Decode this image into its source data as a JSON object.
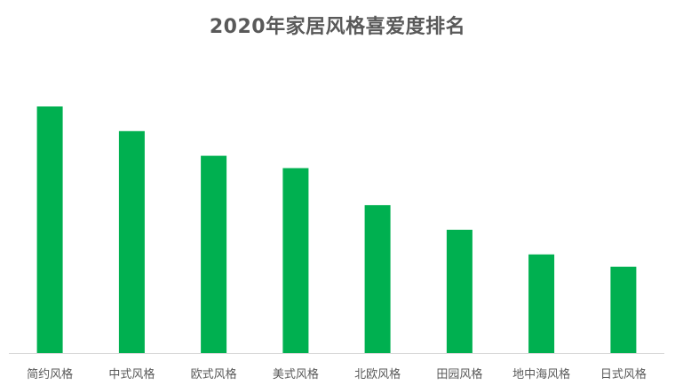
{
  "chart_data": {
    "type": "bar",
    "title": "2020年家居风格喜爱度排名",
    "categories": [
      "简约风格",
      "中式风格",
      "欧式风格",
      "美式风格",
      "北欧风格",
      "田园风格",
      "地中海风格",
      "日式风格"
    ],
    "values": [
      100,
      90,
      80,
      75,
      60,
      50,
      40,
      35
    ],
    "xlabel": "",
    "ylabel": "",
    "ylim": [
      0,
      100
    ],
    "grid": false,
    "legend": "none",
    "bar_color": "#00B050",
    "axis_color": "#D9D9D9",
    "label_color": "#595959"
  }
}
